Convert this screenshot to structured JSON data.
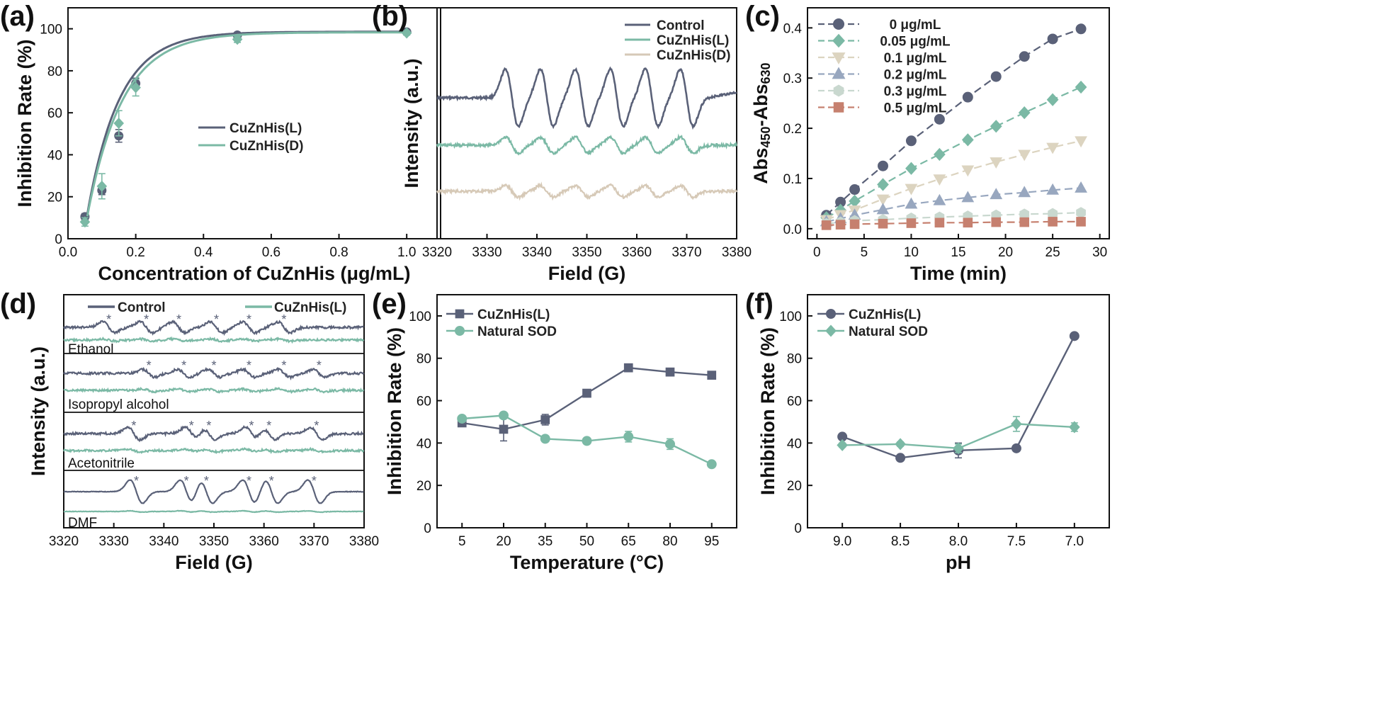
{
  "colors": {
    "slate": "#5a6178",
    "teal": "#7bb9a5",
    "beige": "#d6c9b7",
    "cream": "#dcd4c0",
    "steel": "#98a7bf",
    "mint": "#c9d8cf",
    "brick": "#c6806f",
    "axis": "#111111"
  },
  "chart_data": [
    {
      "panel": "(a)",
      "type": "scatter",
      "xlabel": "Concentration of CuZnHis (μg/mL)",
      "ylabel": "Inhibition Rate (%)",
      "xlim": [
        0,
        1.1
      ],
      "ylim": [
        0,
        110
      ],
      "xticks": [
        0.0,
        0.2,
        0.4,
        0.6,
        0.8,
        1.0
      ],
      "xtick_labels": [
        "0.0",
        "0.2",
        "0.4",
        "0.6",
        "0.8",
        "1.0"
      ],
      "yticks": [
        0,
        20,
        40,
        60,
        80,
        100
      ],
      "ytick_labels": [
        "0",
        "20",
        "40",
        "60",
        "80",
        "100"
      ],
      "legend_position": "center-right",
      "series": [
        {
          "name": "CuZnHis(L)",
          "color": "slate",
          "marker": "circle",
          "x": [
            0.05,
            0.1,
            0.15,
            0.2,
            0.5,
            1.0
          ],
          "y": [
            10.5,
            23,
            49,
            74,
            97,
            98.5
          ],
          "err": [
            1.5,
            2,
            3,
            2.5,
            1,
            0.8
          ],
          "fit": {
            "a": 98.6,
            "k": 10.5,
            "x0": 0.045
          }
        },
        {
          "name": "CuZnHis(D)",
          "color": "teal",
          "marker": "diamond",
          "x": [
            0.05,
            0.1,
            0.15,
            0.2,
            0.5,
            1.0
          ],
          "y": [
            8,
            25,
            55,
            72,
            95,
            98
          ],
          "err": [
            2,
            6,
            6,
            4,
            1.5,
            1
          ],
          "fit": {
            "a": 98.3,
            "k": 9.6,
            "x0": 0.045
          }
        }
      ]
    },
    {
      "panel": "(b)",
      "type": "line",
      "xlabel": "Field (G)",
      "ylabel": "Intensity (a.u.)",
      "xlim": [
        3320,
        3380
      ],
      "xticks": [
        3320,
        3330,
        3340,
        3350,
        3360,
        3370,
        3380
      ],
      "xtick_labels": [
        "3320",
        "3330",
        "3340",
        "3350",
        "3360",
        "3370",
        "3380"
      ],
      "legend_position": "top-right",
      "peak_centers": [
        3335,
        3342,
        3349,
        3356,
        3363,
        3370
      ],
      "series": [
        {
          "name": "Control",
          "color": "slate",
          "amplitude": 1.0,
          "offset": 2.2
        },
        {
          "name": "CuZnHis(L)",
          "color": "teal",
          "amplitude": 0.28,
          "offset": 1.0
        },
        {
          "name": "CuZnHis(D)",
          "color": "beige",
          "amplitude": 0.2,
          "offset": 0.0
        }
      ]
    },
    {
      "panel": "(c)",
      "type": "line",
      "xlabel": "Time (min)",
      "ylabel": "Abs450-Abs630",
      "xlim": [
        -1,
        31
      ],
      "ylim": [
        -0.02,
        0.44
      ],
      "xticks": [
        0,
        5,
        10,
        15,
        20,
        25,
        30
      ],
      "xtick_labels": [
        "0",
        "5",
        "10",
        "15",
        "20",
        "25",
        "30"
      ],
      "yticks": [
        0.0,
        0.1,
        0.2,
        0.3,
        0.4
      ],
      "ytick_labels": [
        "0.0",
        "0.1",
        "0.2",
        "0.3",
        "0.4"
      ],
      "legend_position": "top-left",
      "x": [
        1,
        2.5,
        4,
        7,
        10,
        13,
        16,
        19,
        22,
        25,
        28
      ],
      "series": [
        {
          "name": "0 μg/mL",
          "color": "slate",
          "marker": "circle",
          "values": [
            0.027,
            0.053,
            0.078,
            0.125,
            0.175,
            0.218,
            0.262,
            0.303,
            0.343,
            0.378,
            0.398
          ]
        },
        {
          "name": "0.05 μg/mL",
          "color": "teal",
          "marker": "diamond",
          "values": [
            0.022,
            0.037,
            0.055,
            0.088,
            0.12,
            0.148,
            0.177,
            0.204,
            0.231,
            0.257,
            0.282
          ]
        },
        {
          "name": "0.1 μg/mL",
          "color": "cream",
          "marker": "triangle-down",
          "values": [
            0.018,
            0.028,
            0.037,
            0.059,
            0.08,
            0.099,
            0.117,
            0.133,
            0.148,
            0.162,
            0.175
          ]
        },
        {
          "name": "0.2 μg/mL",
          "color": "steel",
          "marker": "triangle-up",
          "values": [
            0.014,
            0.02,
            0.027,
            0.038,
            0.049,
            0.056,
            0.062,
            0.068,
            0.072,
            0.077,
            0.081
          ]
        },
        {
          "name": "0.3 μg/mL",
          "color": "mint",
          "marker": "hexagon",
          "values": [
            0.01,
            0.013,
            0.016,
            0.018,
            0.021,
            0.023,
            0.025,
            0.027,
            0.029,
            0.03,
            0.032
          ]
        },
        {
          "name": "0.5 μg/mL",
          "color": "brick",
          "marker": "square",
          "values": [
            0.007,
            0.008,
            0.009,
            0.01,
            0.011,
            0.012,
            0.012,
            0.013,
            0.013,
            0.014,
            0.014
          ]
        }
      ]
    },
    {
      "panel": "(d)",
      "type": "line",
      "xlabel": "Field (G)",
      "ylabel": "Intensity (a.u.)",
      "xlim": [
        3320,
        3380
      ],
      "xticks": [
        3320,
        3330,
        3340,
        3350,
        3360,
        3370,
        3380
      ],
      "xtick_labels": [
        "3320",
        "3330",
        "3340",
        "3350",
        "3360",
        "3370",
        "3380"
      ],
      "legend": [
        "Control",
        "CuZnHis(L)"
      ],
      "legend_position": "top",
      "solvents": [
        {
          "label": "Ethanol",
          "stars": [
            3329,
            3336.5,
            3343,
            3350.5,
            3357,
            3364
          ],
          "control_amplitude": 0.35,
          "inhibited_amplitude": 0.08
        },
        {
          "label": "Isopropyl alcohol",
          "stars": [
            3337,
            3344,
            3350,
            3357,
            3364,
            3371
          ],
          "control_amplitude": 0.25,
          "inhibited_amplitude": 0.1
        },
        {
          "label": "Acetonitrile",
          "stars": [
            3334,
            3345.5,
            3349,
            3357.5,
            3361,
            3370.5
          ],
          "control_amplitude": 0.4,
          "inhibited_amplitude": 0.1
        },
        {
          "label": "DMF",
          "stars": [
            3334.5,
            3344.5,
            3348.5,
            3357,
            3361.5,
            3370
          ],
          "control_amplitude": 0.75,
          "inhibited_amplitude": 0.05
        }
      ]
    },
    {
      "panel": "(e)",
      "type": "line",
      "xlabel": "Temperature (°C)",
      "ylabel": "Inhibition Rate (%)",
      "ylim": [
        0,
        110
      ],
      "categories": [
        "5",
        "20",
        "35",
        "50",
        "65",
        "80",
        "95"
      ],
      "yticks": [
        0,
        20,
        40,
        60,
        80,
        100
      ],
      "ytick_labels": [
        "0",
        "20",
        "40",
        "60",
        "80",
        "100"
      ],
      "legend_position": "top-left",
      "series": [
        {
          "name": "CuZnHis(L)",
          "color": "slate",
          "marker": "square",
          "values": [
            49.5,
            46.5,
            51,
            63.5,
            75.5,
            73.5,
            72
          ],
          "err": [
            1.5,
            5.5,
            2.5,
            1,
            1,
            1,
            1
          ]
        },
        {
          "name": "Natural SOD",
          "color": "teal",
          "marker": "circle",
          "values": [
            51.5,
            53,
            42,
            41,
            43,
            39.5,
            30
          ],
          "err": [
            1,
            1,
            1,
            1,
            2.5,
            2.5,
            1
          ]
        }
      ]
    },
    {
      "panel": "(f)",
      "type": "line",
      "xlabel": "pH",
      "ylabel": "Inhibition Rate (%)",
      "ylim": [
        0,
        110
      ],
      "categories": [
        "9.0",
        "8.5",
        "8.0",
        "7.5",
        "7.0"
      ],
      "yticks": [
        0,
        20,
        40,
        60,
        80,
        100
      ],
      "ytick_labels": [
        "0",
        "20",
        "40",
        "60",
        "80",
        "100"
      ],
      "legend_position": "top-left",
      "series": [
        {
          "name": "CuZnHis(L)",
          "color": "slate",
          "marker": "circle",
          "values": [
            43,
            33,
            36.5,
            37.5,
            90.5
          ],
          "err": [
            1,
            1,
            3.5,
            1,
            1
          ]
        },
        {
          "name": "Natural SOD",
          "color": "teal",
          "marker": "diamond",
          "values": [
            39,
            39.5,
            37.5,
            49,
            47.5
          ],
          "err": [
            1,
            1,
            2,
            3.5,
            2
          ]
        }
      ]
    }
  ]
}
